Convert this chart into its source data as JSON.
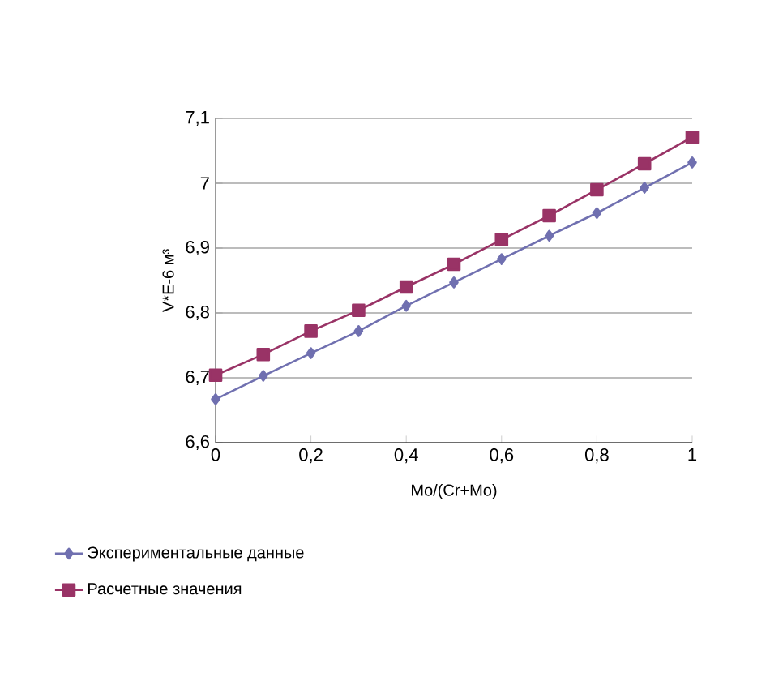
{
  "chart_data": {
    "type": "line",
    "xlabel": "Mo/(Cr+Mo)",
    "ylabel": "V*E-6 м³",
    "x": [
      0,
      0.1,
      0.2,
      0.3,
      0.4,
      0.5,
      0.6,
      0.7,
      0.8,
      0.9,
      1
    ],
    "series": [
      {
        "name": "Экспериментальные данные",
        "color": "#7070b0",
        "marker": "diamond",
        "values": [
          6.667,
          6.703,
          6.738,
          6.772,
          6.811,
          6.847,
          6.883,
          6.919,
          6.954,
          6.993,
          7.032
        ]
      },
      {
        "name": "Расчетные значения",
        "color": "#993366",
        "marker": "square",
        "values": [
          6.704,
          6.736,
          6.772,
          6.804,
          6.84,
          6.875,
          6.913,
          6.95,
          6.99,
          7.03,
          7.071
        ]
      }
    ],
    "xlim": [
      0,
      1
    ],
    "ylim": [
      6.6,
      7.1
    ],
    "xticks": [
      0,
      {
        "value": 0.2,
        "label": "0,2"
      },
      {
        "value": 0.4,
        "label": "0,4"
      },
      {
        "value": 0.6,
        "label": "0,6"
      },
      {
        "value": 0.8,
        "label": "0,8"
      },
      1
    ],
    "yticks": [
      {
        "value": 6.6,
        "label": "6,6"
      },
      {
        "value": 6.7,
        "label": "6,7"
      },
      {
        "value": 6.8,
        "label": "6,8"
      },
      {
        "value": 6.9,
        "label": "6,9"
      },
      7,
      {
        "value": 7.1,
        "label": "7,1"
      }
    ],
    "grid": "y",
    "legend": "bottom",
    "line_style": "solid"
  }
}
